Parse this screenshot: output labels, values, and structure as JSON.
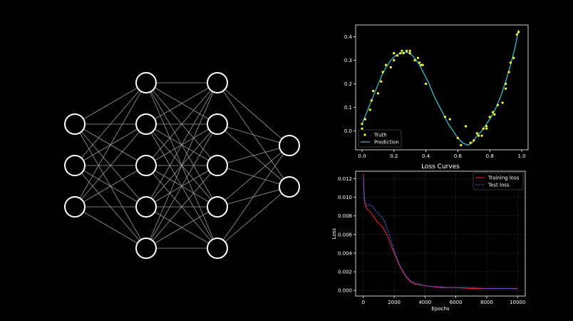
{
  "colors": {
    "background": "#000000",
    "foreground": "#ffffff",
    "network_node": "#ffffff",
    "network_edge": "#9a9a9a",
    "truth": "#ffff33",
    "prediction": "#36c9d4",
    "training_loss": "#e0203a",
    "test_loss": "#2f6fe8",
    "grid": "#555555"
  },
  "network": {
    "layers": [
      3,
      5,
      5,
      2
    ]
  },
  "chart_data": [
    {
      "type": "scatter",
      "title": "",
      "xlabel": "",
      "ylabel": "",
      "xlim": [
        -0.04,
        1.04
      ],
      "ylim": [
        -0.08,
        0.45
      ],
      "x_ticks": [
        "0.0",
        "0.2",
        "0.4",
        "0.6",
        "0.8",
        "1.0"
      ],
      "y_ticks": [
        "0.0",
        "0.1",
        "0.2",
        "0.3",
        "0.4"
      ],
      "grid": false,
      "legend": {
        "position": "lower-left",
        "entries": [
          {
            "label": "Truth",
            "style": "marker",
            "color_key": "truth"
          },
          {
            "label": "Prediction",
            "style": "line",
            "color_key": "prediction"
          }
        ]
      },
      "series": [
        {
          "name": "Truth",
          "style": "scatter",
          "color_key": "truth",
          "x": [
            0.0,
            0.0,
            0.01,
            0.02,
            0.05,
            0.06,
            0.07,
            0.1,
            0.12,
            0.13,
            0.15,
            0.18,
            0.2,
            0.2,
            0.22,
            0.24,
            0.25,
            0.26,
            0.28,
            0.3,
            0.3,
            0.33,
            0.35,
            0.36,
            0.37,
            0.38,
            0.4,
            0.52,
            0.55,
            0.6,
            0.62,
            0.65,
            0.68,
            0.7,
            0.72,
            0.73,
            0.75,
            0.76,
            0.78,
            0.78,
            0.8,
            0.82,
            0.83,
            0.85,
            0.88,
            0.9,
            0.9,
            0.92,
            0.93,
            0.95,
            0.97,
            0.98
          ],
          "y": [
            0.01,
            0.03,
            -0.01,
            0.05,
            0.09,
            0.13,
            0.17,
            0.16,
            0.21,
            0.25,
            0.28,
            0.27,
            0.3,
            0.33,
            0.32,
            0.33,
            0.34,
            0.33,
            0.34,
            0.34,
            0.33,
            0.3,
            0.31,
            0.29,
            0.28,
            0.28,
            0.2,
            0.06,
            0.05,
            -0.03,
            -0.06,
            0.02,
            -0.05,
            -0.04,
            -0.01,
            -0.02,
            -0.02,
            0.01,
            0.01,
            0.02,
            0.06,
            0.08,
            0.07,
            0.11,
            0.12,
            0.18,
            0.2,
            0.25,
            0.29,
            0.31,
            0.41,
            0.42
          ]
        },
        {
          "name": "Prediction",
          "style": "line",
          "color_key": "prediction",
          "x": [
            0.0,
            0.03,
            0.06,
            0.09,
            0.12,
            0.15,
            0.18,
            0.21,
            0.24,
            0.27,
            0.3,
            0.33,
            0.36,
            0.39,
            0.42,
            0.45,
            0.48,
            0.51,
            0.54,
            0.57,
            0.6,
            0.63,
            0.66,
            0.69,
            0.72,
            0.75,
            0.78,
            0.81,
            0.84,
            0.87,
            0.9,
            0.93,
            0.96,
            0.98
          ],
          "y": [
            0.03,
            0.08,
            0.13,
            0.18,
            0.23,
            0.27,
            0.3,
            0.32,
            0.33,
            0.335,
            0.33,
            0.31,
            0.28,
            0.24,
            0.2,
            0.15,
            0.11,
            0.07,
            0.03,
            0.0,
            -0.03,
            -0.05,
            -0.06,
            -0.05,
            -0.02,
            0.0,
            0.03,
            0.06,
            0.1,
            0.15,
            0.21,
            0.28,
            0.36,
            0.43
          ]
        }
      ]
    },
    {
      "type": "line",
      "title": "Loss Curves",
      "xlabel": "Epochs",
      "ylabel": "Loss",
      "xlim": [
        -500,
        10500
      ],
      "ylim": [
        -0.0006,
        0.0128
      ],
      "x_ticks": [
        "0",
        "2000",
        "4000",
        "6000",
        "8000",
        "10000"
      ],
      "y_ticks": [
        "0.000",
        "0.002",
        "0.004",
        "0.006",
        "0.008",
        "0.010",
        "0.012"
      ],
      "grid": true,
      "legend": {
        "position": "top-right",
        "entries": [
          {
            "label": "Training loss",
            "style": "line",
            "color_key": "training_loss"
          },
          {
            "label": "Test loss",
            "style": "dashed",
            "color_key": "test_loss"
          }
        ]
      },
      "series": [
        {
          "name": "Training loss",
          "style": "line",
          "color_key": "training_loss",
          "x": [
            0,
            50,
            100,
            200,
            400,
            600,
            800,
            1000,
            1200,
            1400,
            1600,
            1800,
            2000,
            2200,
            2400,
            2600,
            2800,
            3000,
            3300,
            3600,
            4000,
            4500,
            5000,
            5500,
            6000,
            7000,
            8000,
            9000,
            10000
          ],
          "y": [
            0.0125,
            0.0102,
            0.0093,
            0.0088,
            0.0085,
            0.0081,
            0.0076,
            0.0072,
            0.0069,
            0.0064,
            0.0057,
            0.0048,
            0.004,
            0.0032,
            0.0025,
            0.0019,
            0.0014,
            0.001,
            0.0007,
            0.0006,
            0.0005,
            0.0004,
            0.0003,
            0.0003,
            0.0003,
            0.0002,
            0.0002,
            0.0002,
            0.0002
          ]
        },
        {
          "name": "Test loss",
          "style": "dashed",
          "color_key": "test_loss",
          "x": [
            0,
            50,
            100,
            200,
            400,
            600,
            800,
            1000,
            1200,
            1400,
            1600,
            1800,
            2000,
            2200,
            2400,
            2600,
            2800,
            3000,
            3300,
            3600,
            4000,
            4500,
            5000,
            5500,
            6000,
            7000,
            8000,
            9000,
            10000
          ],
          "y": [
            0.0122,
            0.0105,
            0.0096,
            0.0091,
            0.0092,
            0.009,
            0.0086,
            0.0082,
            0.0079,
            0.0073,
            0.0064,
            0.0053,
            0.0043,
            0.0034,
            0.0026,
            0.002,
            0.0015,
            0.0011,
            0.0008,
            0.0007,
            0.0005,
            0.0004,
            0.0004,
            0.0003,
            0.0003,
            0.0003,
            0.0002,
            0.0002,
            0.0002
          ]
        }
      ]
    }
  ]
}
